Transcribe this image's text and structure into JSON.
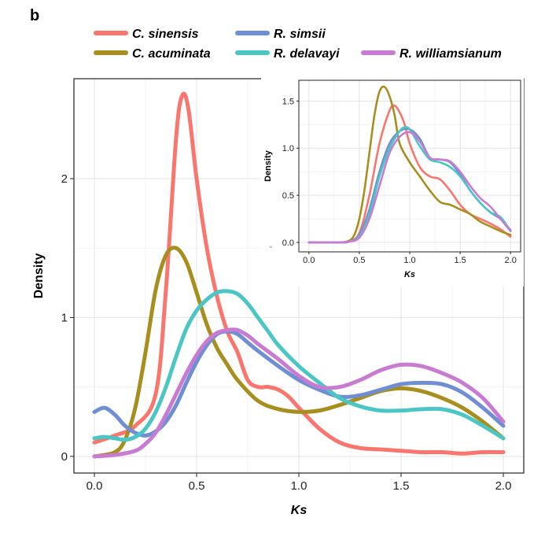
{
  "figure": {
    "panel_letter": "b",
    "stray_mark": "\""
  },
  "chart_data": [
    {
      "id": "main",
      "type": "line",
      "title": "",
      "xlabel": "Ks",
      "ylabel": "Density",
      "xlim": [
        -0.1,
        2.1
      ],
      "ylim": [
        -0.12,
        2.72
      ],
      "xticks": [
        0.0,
        0.5,
        1.0,
        1.5,
        2.0
      ],
      "xtick_labels": [
        "0.0",
        "0.5",
        "1.0",
        "1.5",
        "2.0"
      ],
      "yticks": [
        0,
        1,
        2
      ],
      "ytick_labels": [
        "0",
        "1",
        "2"
      ],
      "grid": true,
      "legend_position": "top",
      "series": [
        {
          "name": "C. sinensis",
          "color": "#F8766D",
          "x": [
            0,
            0.1,
            0.2,
            0.3,
            0.35,
            0.4,
            0.43,
            0.46,
            0.5,
            0.55,
            0.6,
            0.65,
            0.7,
            0.75,
            0.8,
            0.85,
            0.9,
            0.95,
            1.0,
            1.1,
            1.2,
            1.3,
            1.4,
            1.5,
            1.6,
            1.7,
            1.8,
            1.9,
            2.0
          ],
          "values": [
            0.1,
            0.15,
            0.22,
            0.45,
            1.2,
            2.3,
            2.6,
            2.5,
            2.0,
            1.5,
            1.15,
            0.9,
            0.75,
            0.55,
            0.5,
            0.5,
            0.48,
            0.43,
            0.35,
            0.2,
            0.1,
            0.06,
            0.05,
            0.04,
            0.03,
            0.03,
            0.02,
            0.03,
            0.03
          ]
        },
        {
          "name": "C. acuminata",
          "color": "#A68F1F",
          "x": [
            0,
            0.1,
            0.15,
            0.2,
            0.25,
            0.3,
            0.35,
            0.4,
            0.45,
            0.5,
            0.55,
            0.6,
            0.65,
            0.7,
            0.8,
            0.9,
            1.0,
            1.1,
            1.2,
            1.3,
            1.4,
            1.5,
            1.6,
            1.7,
            1.8,
            1.9,
            2.0
          ],
          "values": [
            0.0,
            0.03,
            0.12,
            0.35,
            0.75,
            1.2,
            1.45,
            1.5,
            1.4,
            1.18,
            0.95,
            0.78,
            0.66,
            0.55,
            0.4,
            0.34,
            0.32,
            0.33,
            0.37,
            0.42,
            0.47,
            0.49,
            0.47,
            0.42,
            0.35,
            0.25,
            0.13
          ]
        },
        {
          "name": "R. simsii",
          "color": "#6F8FD2",
          "x": [
            0,
            0.05,
            0.1,
            0.15,
            0.2,
            0.25,
            0.3,
            0.35,
            0.4,
            0.45,
            0.5,
            0.55,
            0.6,
            0.65,
            0.7,
            0.75,
            0.8,
            0.9,
            1.0,
            1.1,
            1.2,
            1.3,
            1.4,
            1.5,
            1.6,
            1.7,
            1.8,
            1.9,
            2.0
          ],
          "values": [
            0.32,
            0.35,
            0.3,
            0.22,
            0.17,
            0.15,
            0.18,
            0.25,
            0.37,
            0.53,
            0.68,
            0.8,
            0.88,
            0.9,
            0.88,
            0.82,
            0.76,
            0.65,
            0.55,
            0.48,
            0.43,
            0.44,
            0.48,
            0.52,
            0.53,
            0.52,
            0.46,
            0.35,
            0.22
          ]
        },
        {
          "name": "R. delavayi",
          "color": "#4CC6C4",
          "x": [
            0,
            0.05,
            0.1,
            0.15,
            0.2,
            0.25,
            0.3,
            0.35,
            0.4,
            0.45,
            0.5,
            0.55,
            0.6,
            0.65,
            0.7,
            0.75,
            0.8,
            0.85,
            0.9,
            1.0,
            1.1,
            1.2,
            1.3,
            1.4,
            1.5,
            1.6,
            1.7,
            1.8,
            1.9,
            2.0
          ],
          "values": [
            0.13,
            0.14,
            0.13,
            0.12,
            0.14,
            0.2,
            0.32,
            0.5,
            0.72,
            0.92,
            1.05,
            1.13,
            1.18,
            1.19,
            1.17,
            1.1,
            1.0,
            0.9,
            0.8,
            0.65,
            0.53,
            0.42,
            0.36,
            0.33,
            0.33,
            0.34,
            0.34,
            0.3,
            0.22,
            0.13
          ]
        },
        {
          "name": "R. williamsianum",
          "color": "#C77CD2",
          "x": [
            0,
            0.1,
            0.2,
            0.25,
            0.3,
            0.35,
            0.4,
            0.45,
            0.5,
            0.55,
            0.6,
            0.65,
            0.7,
            0.75,
            0.8,
            0.9,
            1.0,
            1.1,
            1.2,
            1.3,
            1.4,
            1.5,
            1.6,
            1.7,
            1.8,
            1.9,
            2.0
          ],
          "values": [
            0.0,
            0.01,
            0.04,
            0.09,
            0.17,
            0.3,
            0.45,
            0.6,
            0.73,
            0.83,
            0.89,
            0.91,
            0.91,
            0.87,
            0.81,
            0.7,
            0.58,
            0.5,
            0.5,
            0.55,
            0.62,
            0.66,
            0.65,
            0.6,
            0.53,
            0.42,
            0.25
          ]
        }
      ]
    },
    {
      "id": "inset",
      "type": "line",
      "title": "",
      "xlabel": "Ks",
      "ylabel": "Density",
      "xlim": [
        -0.1,
        2.1
      ],
      "ylim": [
        -0.1,
        1.72
      ],
      "xticks": [
        0.0,
        0.5,
        1.0,
        1.5,
        2.0
      ],
      "xtick_labels": [
        "0.0",
        "0.5",
        "1.0",
        "1.5",
        "2.0"
      ],
      "yticks": [
        0.0,
        0.5,
        1.0,
        1.5
      ],
      "ytick_labels": [
        "0.0",
        "0.5",
        "1.0",
        "1.5"
      ],
      "grid": true,
      "series": [
        {
          "name": "C. sinensis",
          "color": "#F8766D",
          "x": [
            0,
            0.3,
            0.4,
            0.5,
            0.6,
            0.7,
            0.8,
            0.85,
            0.9,
            0.95,
            1.0,
            1.1,
            1.2,
            1.3,
            1.4,
            1.5,
            1.6,
            1.7,
            1.8,
            1.9,
            2.0
          ],
          "values": [
            0.0,
            0.0,
            0.01,
            0.1,
            0.5,
            1.05,
            1.4,
            1.45,
            1.38,
            1.25,
            1.05,
            0.8,
            0.7,
            0.67,
            0.55,
            0.4,
            0.3,
            0.25,
            0.2,
            0.14,
            0.06
          ]
        },
        {
          "name": "C. acuminata",
          "color": "#A68F1F",
          "x": [
            0,
            0.3,
            0.4,
            0.45,
            0.5,
            0.55,
            0.6,
            0.65,
            0.7,
            0.75,
            0.8,
            0.85,
            0.9,
            1.0,
            1.1,
            1.2,
            1.3,
            1.4,
            1.5,
            1.6,
            1.7,
            1.8,
            1.9,
            2.0
          ],
          "values": [
            0.0,
            0.0,
            0.02,
            0.08,
            0.25,
            0.55,
            0.95,
            1.35,
            1.6,
            1.65,
            1.55,
            1.35,
            1.05,
            0.85,
            0.7,
            0.55,
            0.43,
            0.4,
            0.35,
            0.3,
            0.22,
            0.17,
            0.12,
            0.08
          ]
        },
        {
          "name": "R. simsii",
          "color": "#6F8FD2",
          "x": [
            0,
            0.3,
            0.4,
            0.5,
            0.6,
            0.7,
            0.8,
            0.9,
            1.0,
            1.1,
            1.2,
            1.3,
            1.4,
            1.5,
            1.6,
            1.7,
            1.8,
            1.9,
            2.0
          ],
          "values": [
            0.0,
            0.0,
            0.01,
            0.08,
            0.35,
            0.75,
            1.05,
            1.18,
            1.2,
            1.1,
            0.9,
            0.88,
            0.85,
            0.72,
            0.55,
            0.42,
            0.32,
            0.25,
            0.13
          ]
        },
        {
          "name": "R. delavayi",
          "color": "#4CC6C4",
          "x": [
            0,
            0.3,
            0.4,
            0.5,
            0.6,
            0.7,
            0.8,
            0.9,
            0.95,
            1.0,
            1.1,
            1.2,
            1.3,
            1.4,
            1.5,
            1.6,
            1.7,
            1.8,
            1.9,
            2.0
          ],
          "values": [
            0.0,
            0.0,
            0.01,
            0.06,
            0.3,
            0.7,
            1.0,
            1.18,
            1.22,
            1.2,
            1.02,
            0.88,
            0.85,
            0.8,
            0.7,
            0.55,
            0.42,
            0.32,
            0.27,
            0.12
          ]
        },
        {
          "name": "R. williamsianum",
          "color": "#C77CD2",
          "x": [
            0,
            0.3,
            0.4,
            0.5,
            0.6,
            0.7,
            0.8,
            0.9,
            1.0,
            1.1,
            1.2,
            1.3,
            1.4,
            1.5,
            1.6,
            1.7,
            1.8,
            1.9,
            2.0
          ],
          "values": [
            0.0,
            0.0,
            0.01,
            0.05,
            0.25,
            0.6,
            0.95,
            1.12,
            1.17,
            1.07,
            0.9,
            0.88,
            0.86,
            0.75,
            0.6,
            0.47,
            0.38,
            0.25,
            0.12
          ]
        }
      ]
    }
  ]
}
